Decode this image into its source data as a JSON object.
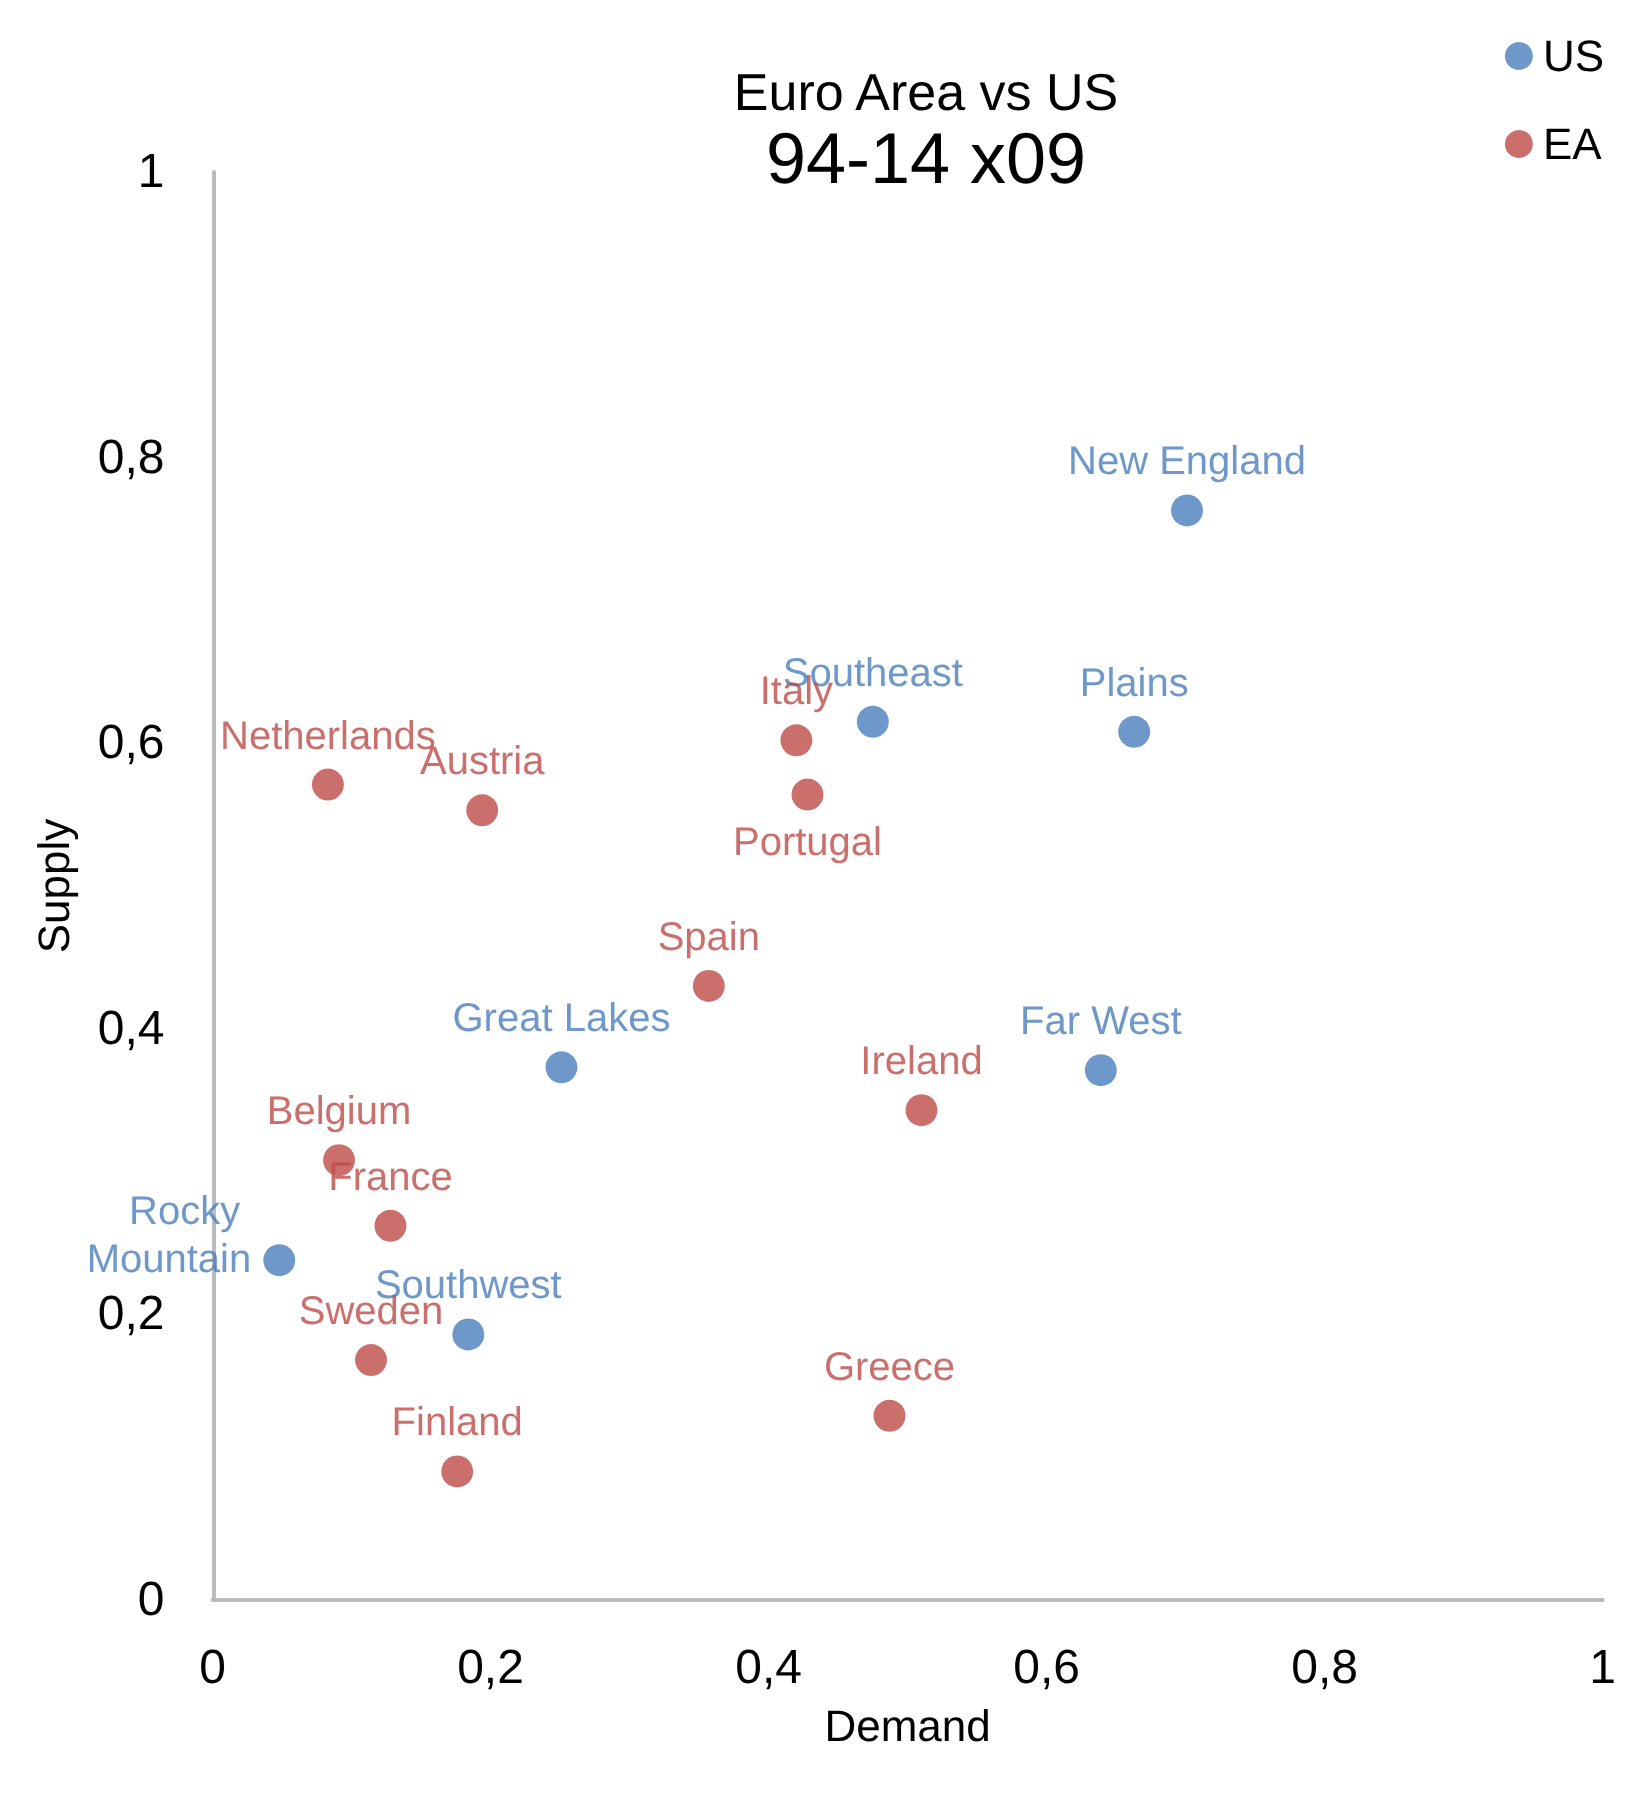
{
  "chart_data": {
    "type": "scatter",
    "title": "Euro Area vs US",
    "subtitle": "94-14 x09",
    "xlabel": "Demand",
    "ylabel": "Supply",
    "series": [
      {
        "name": "US",
        "color": "#4a7ebb",
        "x": [
          0.701,
          0.475,
          0.663,
          0.251,
          0.639,
          0.048,
          0.184
        ],
        "values": [
          0.763,
          0.615,
          0.608,
          0.373,
          0.371,
          0.238,
          0.186
        ]
      },
      {
        "name": "EA",
        "color": "#be4b48",
        "x": [
          0.083,
          0.194,
          0.42,
          0.428,
          0.357,
          0.51,
          0.091,
          0.128,
          0.114,
          0.176,
          0.487
        ],
        "values": [
          0.571,
          0.553,
          0.602,
          0.564,
          0.43,
          0.343,
          0.308,
          0.262,
          0.168,
          0.09,
          0.129
        ]
      }
    ],
    "annotations": [
      {
        "text": "New England",
        "x": 0.701,
        "y": 0.763
      },
      {
        "text": "Southeast",
        "x": 0.475,
        "y": 0.615
      },
      {
        "text": "Plains",
        "x": 0.663,
        "y": 0.608
      },
      {
        "text": "Great Lakes",
        "x": 0.251,
        "y": 0.373
      },
      {
        "text": "Far West",
        "x": 0.639,
        "y": 0.371
      },
      {
        "text": "Rocky Mountain",
        "x": 0.048,
        "y": 0.238
      },
      {
        "text": "Southwest",
        "x": 0.184,
        "y": 0.186
      },
      {
        "text": "Netherlands",
        "x": 0.083,
        "y": 0.571
      },
      {
        "text": "Austria",
        "x": 0.194,
        "y": 0.553
      },
      {
        "text": "Italy",
        "x": 0.42,
        "y": 0.602
      },
      {
        "text": "Portugal",
        "x": 0.428,
        "y": 0.564
      },
      {
        "text": "Spain",
        "x": 0.357,
        "y": 0.43
      },
      {
        "text": "Ireland",
        "x": 0.51,
        "y": 0.343
      },
      {
        "text": "Belgium",
        "x": 0.091,
        "y": 0.308
      },
      {
        "text": "France",
        "x": 0.128,
        "y": 0.262
      },
      {
        "text": "Sweden",
        "x": 0.114,
        "y": 0.168
      },
      {
        "text": "Finland",
        "x": 0.176,
        "y": 0.09
      },
      {
        "text": "Greece",
        "x": 0.487,
        "y": 0.129
      }
    ],
    "xlim": [
      0,
      1
    ],
    "ylim": [
      0,
      1
    ],
    "xticks": [
      0,
      {
        "value": 0.2,
        "label": "0,2"
      },
      {
        "value": 0.4,
        "label": "0,4"
      },
      {
        "value": 0.6,
        "label": "0,6"
      },
      {
        "value": 0.8,
        "label": "0,8"
      },
      1
    ],
    "yticks": [
      0,
      {
        "value": 0.2,
        "label": "0,2"
      },
      {
        "value": 0.4,
        "label": "0,4"
      },
      {
        "value": 0.6,
        "label": "0,6"
      },
      {
        "value": 0.8,
        "label": "0,8"
      },
      1
    ],
    "grid": false,
    "legend": "top right",
    "marker": "circle"
  }
}
